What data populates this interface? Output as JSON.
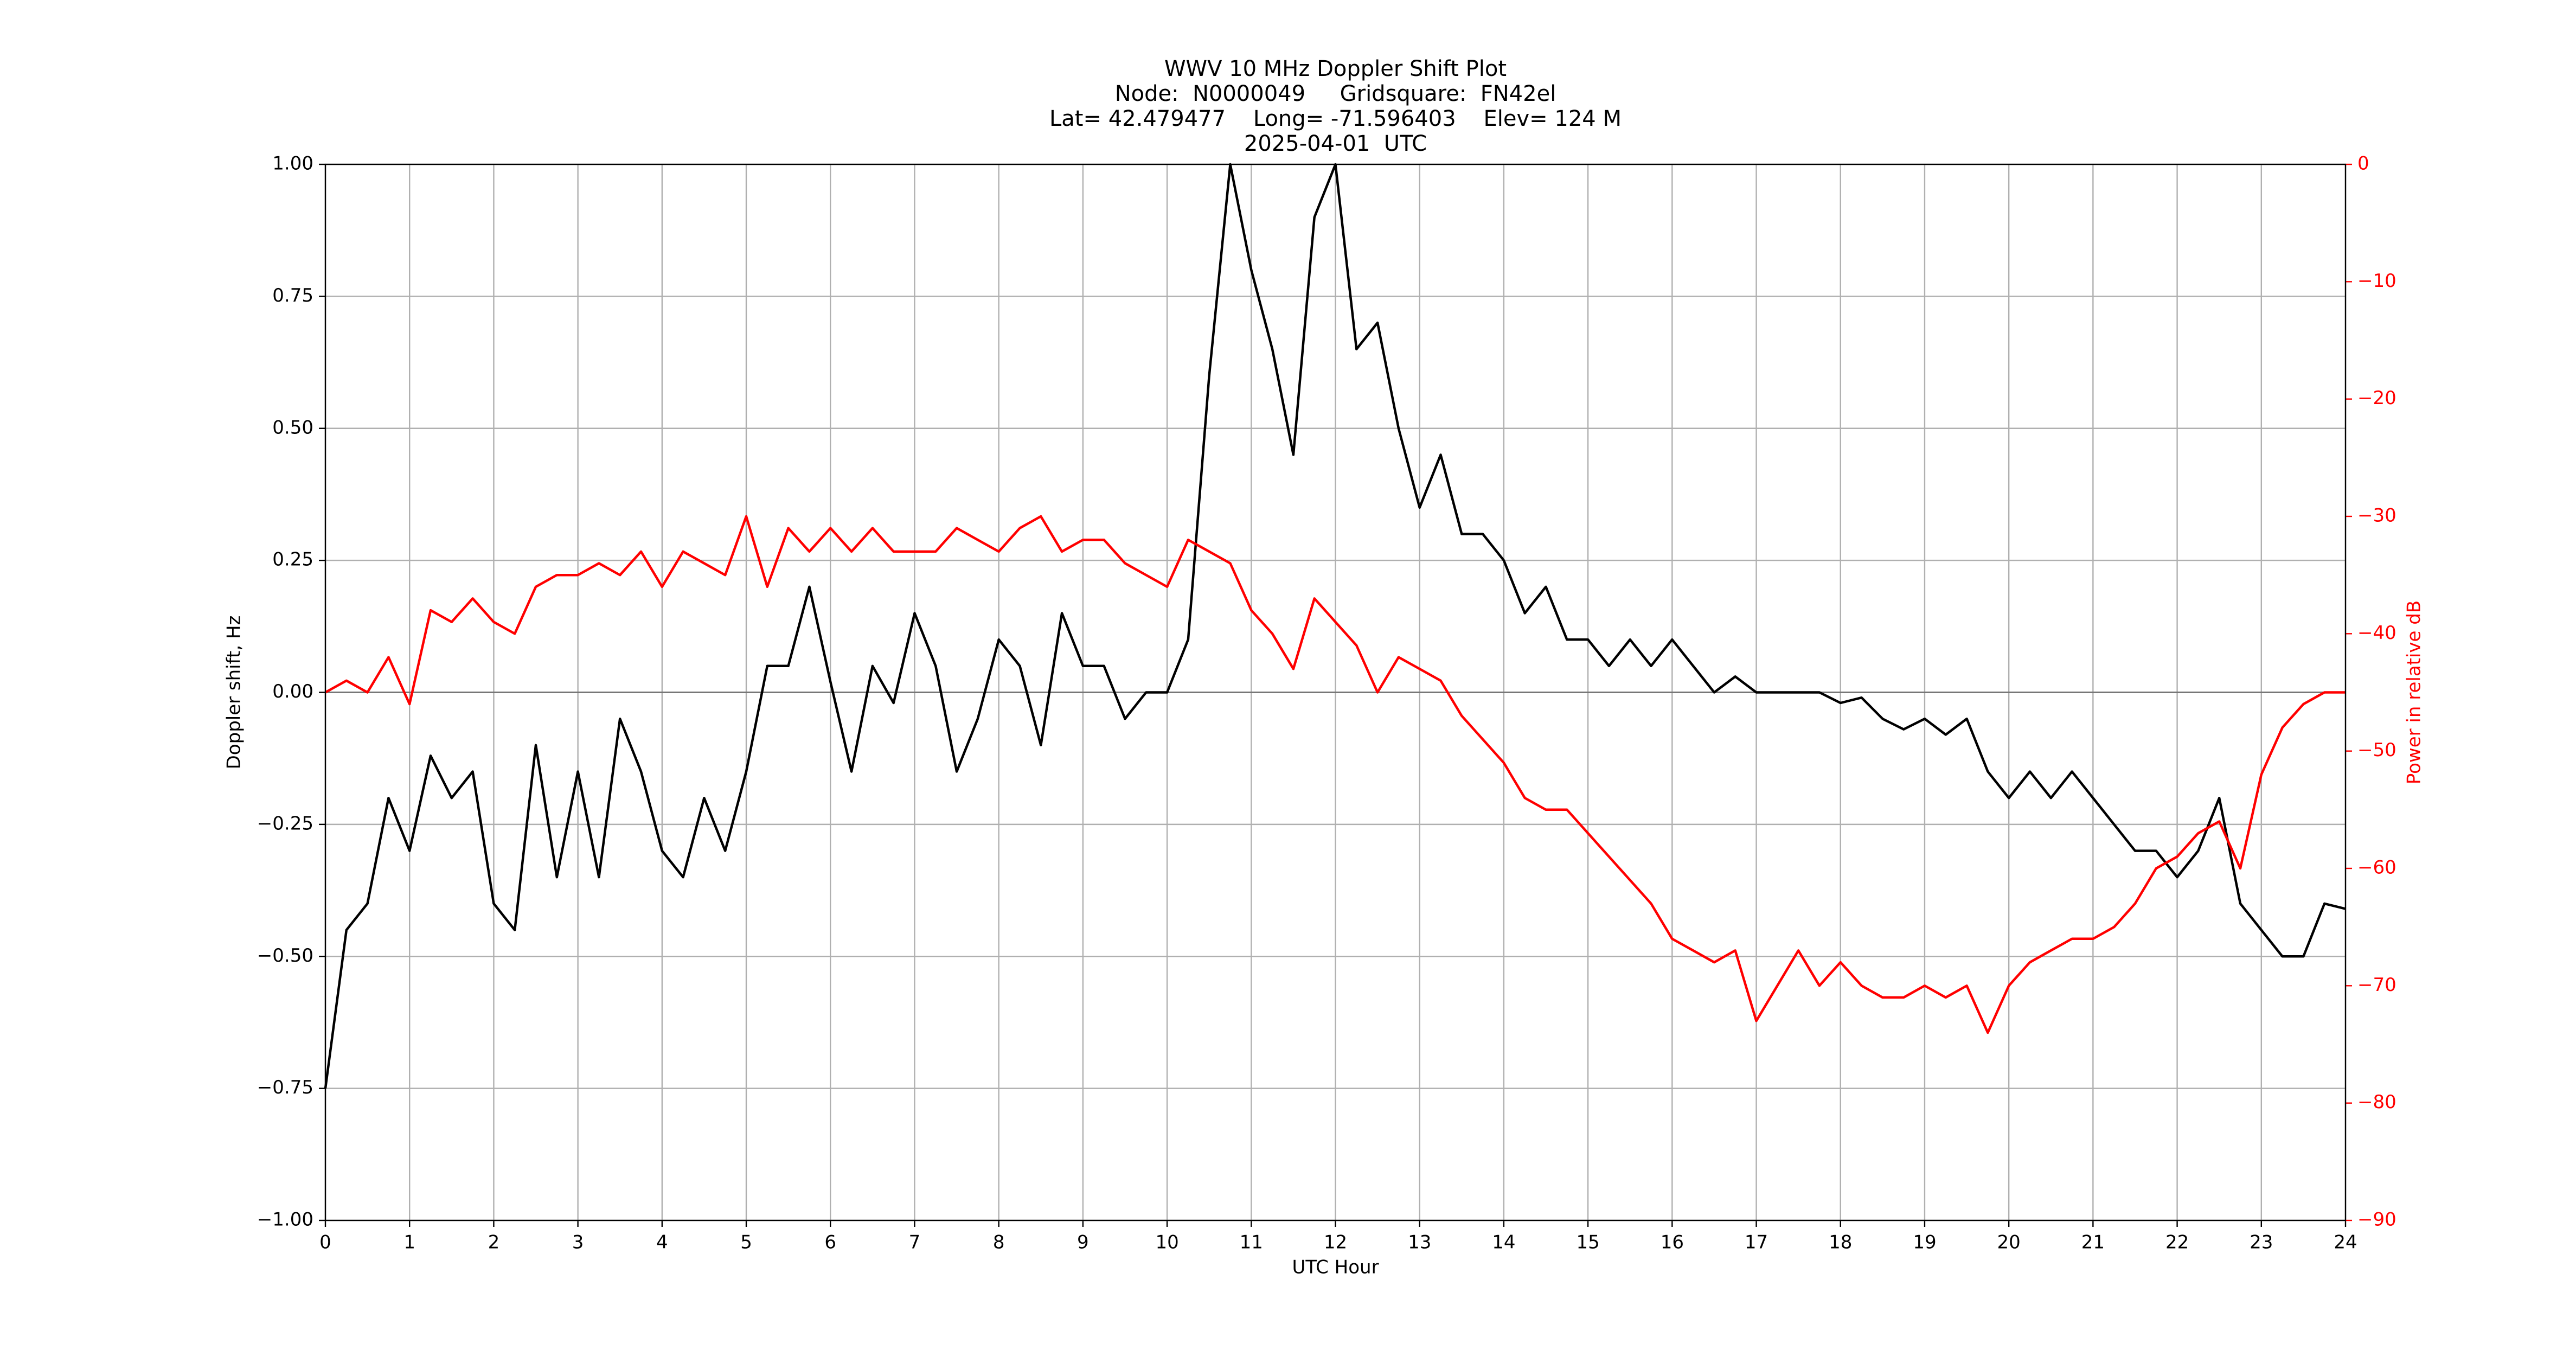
{
  "chart_data": {
    "type": "line",
    "title": [
      "WWV 10 MHz Doppler Shift Plot",
      "Node:  N0000049     Gridsquare:  FN42el",
      "Lat= 42.479477    Long= -71.596403    Elev= 124 M",
      "2025-04-01  UTC"
    ],
    "xlabel": "UTC Hour",
    "ylabel": "Doppler shift, Hz",
    "y2label": "Power in relative dB",
    "x": [
      0,
      0.25,
      0.5,
      0.75,
      1,
      1.25,
      1.5,
      1.75,
      2,
      2.25,
      2.5,
      2.75,
      3,
      3.25,
      3.5,
      3.75,
      4,
      4.25,
      4.5,
      4.75,
      5,
      5.25,
      5.5,
      5.75,
      6,
      6.25,
      6.5,
      6.75,
      7,
      7.25,
      7.5,
      7.75,
      8,
      8.25,
      8.5,
      8.75,
      9,
      9.25,
      9.5,
      9.75,
      10,
      10.25,
      10.5,
      10.75,
      11,
      11.25,
      11.5,
      11.75,
      12,
      12.25,
      12.5,
      12.75,
      13,
      13.25,
      13.5,
      13.75,
      14,
      14.25,
      14.5,
      14.75,
      15,
      15.25,
      15.5,
      15.75,
      16,
      16.25,
      16.5,
      16.75,
      17,
      17.25,
      17.5,
      17.75,
      18,
      18.25,
      18.5,
      18.75,
      19,
      19.25,
      19.5,
      19.75,
      20,
      20.25,
      20.5,
      20.75,
      21,
      21.25,
      21.5,
      21.75,
      22,
      22.25,
      22.5,
      22.75,
      23,
      23.25,
      23.5,
      23.75,
      24
    ],
    "series": [
      {
        "name": "Doppler shift",
        "color": "black",
        "values": [
          -0.75,
          -0.45,
          -0.4,
          -0.2,
          -0.3,
          -0.12,
          -0.2,
          -0.15,
          -0.4,
          -0.45,
          -0.1,
          -0.35,
          -0.15,
          -0.35,
          -0.05,
          -0.15,
          -0.3,
          -0.35,
          -0.2,
          -0.3,
          -0.15,
          0.05,
          0.05,
          0.2,
          0.02,
          -0.15,
          0.05,
          -0.02,
          0.15,
          0.05,
          -0.15,
          -0.05,
          0.1,
          0.05,
          -0.1,
          0.15,
          0.05,
          0.05,
          -0.05,
          0,
          0,
          0.1,
          0.6,
          1,
          0.8,
          0.65,
          0.45,
          0.9,
          1,
          0.65,
          0.7,
          0.5,
          0.35,
          0.45,
          0.3,
          0.3,
          0.25,
          0.15,
          0.2,
          0.1,
          0.1,
          0.05,
          0.1,
          0.05,
          0.1,
          0.05,
          0,
          0.03,
          0,
          0,
          0,
          0,
          -0.02,
          -0.01,
          -0.05,
          -0.07,
          -0.05,
          -0.08,
          -0.05,
          -0.15,
          -0.2,
          -0.15,
          -0.2,
          -0.15,
          -0.2,
          -0.25,
          -0.3,
          -0.3,
          -0.35,
          -0.3,
          -0.2,
          -0.4,
          -0.45,
          -0.5,
          -0.5,
          -0.4,
          -0.41
        ]
      },
      {
        "name": "Power",
        "color": "red",
        "axis": "y2",
        "values": [
          -45,
          -44,
          -45,
          -42,
          -46,
          -38,
          -39,
          -37,
          -39,
          -40,
          -36,
          -35,
          -35,
          -34,
          -35,
          -33,
          -36,
          -33,
          -34,
          -35,
          -30,
          -36,
          -31,
          -33,
          -31,
          -33,
          -31,
          -33,
          -33,
          -33,
          -31,
          -32,
          -33,
          -31,
          -30,
          -33,
          -32,
          -32,
          -34,
          -35,
          -36,
          -32,
          -33,
          -34,
          -38,
          -40,
          -43,
          -37,
          -39,
          -41,
          -45,
          -42,
          -43,
          -44,
          -47,
          -49,
          -51,
          -54,
          -55,
          -55,
          -57,
          -59,
          -61,
          -63,
          -66,
          -67,
          -68,
          -67,
          -73,
          -70,
          -67,
          -70,
          -68,
          -70,
          -71,
          -71,
          -70,
          -71,
          -70,
          -74,
          -70,
          -68,
          -67,
          -66,
          -66,
          -65,
          -63,
          -60,
          -59,
          -57,
          -56,
          -60,
          -52,
          -48,
          -46,
          -45,
          -45
        ]
      }
    ],
    "xlim": [
      0,
      24
    ],
    "xticks": [
      0,
      1,
      2,
      3,
      4,
      5,
      6,
      7,
      8,
      9,
      10,
      11,
      12,
      13,
      14,
      15,
      16,
      17,
      18,
      19,
      20,
      21,
      22,
      23,
      24
    ],
    "ylim": [
      -1,
      1
    ],
    "yticks": [
      {
        "value": -1,
        "label": "−1.00"
      },
      {
        "value": -0.75,
        "label": "−0.75"
      },
      {
        "value": -0.5,
        "label": "−0.50"
      },
      {
        "value": -0.25,
        "label": "−0.25"
      },
      {
        "value": 0,
        "label": "0.00"
      },
      {
        "value": 0.25,
        "label": "0.25"
      },
      {
        "value": 0.5,
        "label": "0.50"
      },
      {
        "value": 0.75,
        "label": "0.75"
      },
      {
        "value": 1,
        "label": "1.00"
      }
    ],
    "y2lim": [
      -90,
      0
    ],
    "y2ticks": [
      {
        "value": -90,
        "label": "−90"
      },
      {
        "value": -80,
        "label": "−80"
      },
      {
        "value": -70,
        "label": "−70"
      },
      {
        "value": -60,
        "label": "−60"
      },
      {
        "value": -50,
        "label": "−50"
      },
      {
        "value": -40,
        "label": "−40"
      },
      {
        "value": -30,
        "label": "−30"
      },
      {
        "value": -20,
        "label": "−20"
      },
      {
        "value": -10,
        "label": "−10"
      },
      0
    ],
    "y2color": "red",
    "grid": true
  }
}
